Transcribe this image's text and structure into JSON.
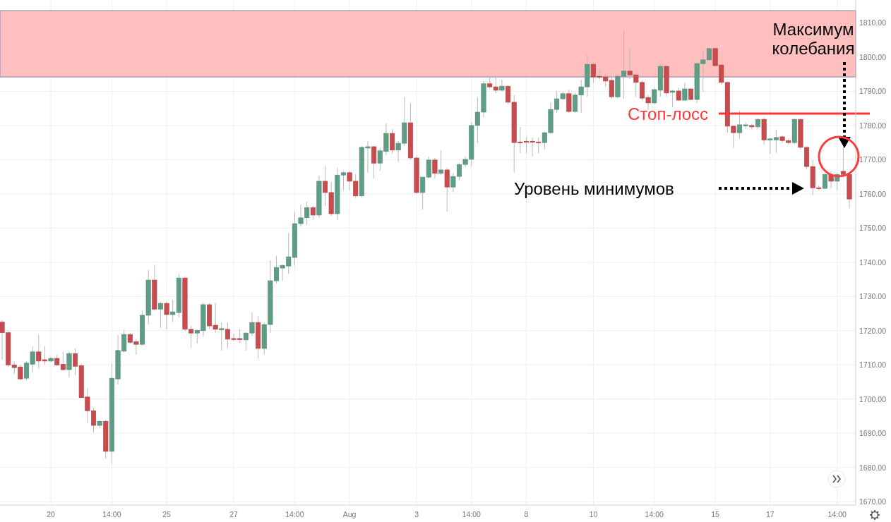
{
  "chart_data": {
    "type": "candlestick",
    "categories": [
      null,
      null,
      null,
      null,
      null,
      null,
      null,
      null,
      "20",
      null,
      null,
      null,
      null,
      null,
      null,
      null,
      null,
      null,
      "14:00",
      null,
      null,
      null,
      null,
      null,
      null,
      null,
      null,
      "25",
      null,
      null,
      null,
      null,
      null,
      null,
      null,
      null,
      null,
      null,
      "27",
      null,
      null,
      null,
      null,
      null,
      null,
      null,
      null,
      null,
      "14:00",
      null,
      null,
      null,
      null,
      null,
      null,
      null,
      null,
      "Aug",
      null,
      null,
      null,
      null,
      null,
      null,
      null,
      null,
      null,
      null,
      "3",
      null,
      null,
      null,
      null,
      null,
      null,
      null,
      null,
      "14:00",
      null,
      null,
      null,
      null,
      null,
      null,
      null,
      null,
      "8",
      null,
      null,
      null,
      null,
      null,
      null,
      null,
      null,
      null,
      null,
      "10",
      null,
      null,
      null,
      null,
      null,
      null,
      null,
      null,
      null,
      "14:00",
      null,
      null,
      null,
      null,
      null,
      null,
      null,
      null,
      null,
      "15",
      null,
      null,
      null,
      null,
      null,
      null,
      null,
      null,
      "17",
      null,
      null,
      null,
      null,
      null,
      null,
      null,
      null,
      null,
      null,
      "14:00",
      null,
      null
    ],
    "ohlc": [
      [
        1722.5,
        1723,
        1711.5,
        1719.4
      ],
      [
        1719.4,
        1719.7,
        1709.4,
        1710
      ],
      [
        1710,
        1711,
        1707.4,
        1709.2
      ],
      [
        1709.4,
        1710,
        1705.5,
        1705.9
      ],
      [
        1706.1,
        1711,
        1705.5,
        1710.5
      ],
      [
        1710.2,
        1715.4,
        1707.8,
        1713.8
      ],
      [
        1713.8,
        1718.7,
        1708.8,
        1711.1
      ],
      [
        1711.5,
        1715.4,
        1710,
        1711.1
      ],
      [
        1711.1,
        1712.3,
        1710.8,
        1711.9
      ],
      [
        1711.9,
        1712.9,
        1709.6,
        1710
      ],
      [
        1710.2,
        1713.8,
        1708.4,
        1708.6
      ],
      [
        1708.6,
        1714,
        1706.3,
        1713.3
      ],
      [
        1713.3,
        1714.8,
        1707,
        1709.6
      ],
      [
        1709.8,
        1710.2,
        1700.4,
        1700.4
      ],
      [
        1700.6,
        1703.2,
        1692.9,
        1696.6
      ],
      [
        1696.6,
        1697.4,
        1690.2,
        1692.3
      ],
      [
        1692.3,
        1693.9,
        1691.5,
        1693.5
      ],
      [
        1693.5,
        1693.9,
        1682.6,
        1684.7
      ],
      [
        1684.7,
        1710.4,
        1681.1,
        1706.1
      ],
      [
        1705.9,
        1718.7,
        1704.3,
        1714.2
      ],
      [
        1714,
        1720.3,
        1713.6,
        1718.9
      ],
      [
        1718.9,
        1719.4,
        1716.2,
        1716.6
      ],
      [
        1716.8,
        1717.6,
        1713,
        1716
      ],
      [
        1716,
        1725.9,
        1715.6,
        1724.5
      ],
      [
        1724.5,
        1737.7,
        1721.8,
        1734.8
      ],
      [
        1734.8,
        1739.3,
        1726,
        1726.3
      ],
      [
        1726.3,
        1728.4,
        1720.8,
        1728
      ],
      [
        1728,
        1728.4,
        1720.4,
        1724.7
      ],
      [
        1724.7,
        1729,
        1722.5,
        1725.5
      ],
      [
        1725.3,
        1736.6,
        1723.9,
        1735.4
      ],
      [
        1735.4,
        1735.6,
        1720,
        1720.4
      ],
      [
        1720.4,
        1721.4,
        1715,
        1719.3
      ],
      [
        1719.3,
        1720.4,
        1716.2,
        1720.1
      ],
      [
        1720,
        1728.2,
        1718.3,
        1727.6
      ],
      [
        1727.6,
        1728,
        1720.5,
        1721.4
      ],
      [
        1721.6,
        1728.2,
        1719.5,
        1720.4
      ],
      [
        1720.6,
        1722.4,
        1714.2,
        1720.6
      ],
      [
        1720.4,
        1722.4,
        1715,
        1717.5
      ],
      [
        1717.7,
        1719.1,
        1717,
        1717.5
      ],
      [
        1717.7,
        1720.4,
        1716.4,
        1717.5
      ],
      [
        1717.3,
        1719.6,
        1714.2,
        1719.3
      ],
      [
        1719.3,
        1725.3,
        1718.5,
        1722.4
      ],
      [
        1722.4,
        1724.3,
        1711.9,
        1714.8
      ],
      [
        1714.8,
        1722.5,
        1713.1,
        1721.8
      ],
      [
        1721.8,
        1740.6,
        1719.3,
        1734.6
      ],
      [
        1734.6,
        1741.8,
        1733.8,
        1738.5
      ],
      [
        1738.3,
        1739.4,
        1734.6,
        1739.1
      ],
      [
        1738.9,
        1748.6,
        1736.6,
        1741.6
      ],
      [
        1741.4,
        1754.8,
        1739,
        1751.3
      ],
      [
        1751.3,
        1756.9,
        1750.5,
        1753
      ],
      [
        1753,
        1757.7,
        1750.9,
        1756
      ],
      [
        1756,
        1756.5,
        1752.5,
        1753.8
      ],
      [
        1753.8,
        1765.3,
        1753,
        1763.7
      ],
      [
        1763.7,
        1768.2,
        1756.5,
        1760.4
      ],
      [
        1760.4,
        1763.5,
        1753.6,
        1754.2
      ],
      [
        1754.2,
        1767.6,
        1752.3,
        1765.5
      ],
      [
        1765.5,
        1766.5,
        1761,
        1766.2
      ],
      [
        1766.2,
        1766.6,
        1761,
        1763.7
      ],
      [
        1763.7,
        1765.8,
        1758.8,
        1759.4
      ],
      [
        1759.4,
        1774,
        1759,
        1773.6
      ],
      [
        1773.4,
        1775.4,
        1766.2,
        1773.8
      ],
      [
        1773.8,
        1774,
        1764.5,
        1769
      ],
      [
        1769,
        1773.5,
        1766.8,
        1772.6
      ],
      [
        1772.4,
        1780.6,
        1771.3,
        1777.7
      ],
      [
        1777.7,
        1779,
        1771.8,
        1772.8
      ],
      [
        1772.8,
        1775.5,
        1769.3,
        1774.8
      ],
      [
        1774.8,
        1788.4,
        1774,
        1780.8
      ],
      [
        1780.8,
        1786.4,
        1770,
        1770.5
      ],
      [
        1770.5,
        1771,
        1760,
        1760.4
      ],
      [
        1760.4,
        1765,
        1755.4,
        1764.9
      ],
      [
        1764.9,
        1770.9,
        1764.5,
        1769.9
      ],
      [
        1769.9,
        1770.5,
        1764.5,
        1766
      ],
      [
        1766,
        1772.8,
        1765.5,
        1767
      ],
      [
        1767,
        1767.5,
        1754.8,
        1762
      ],
      [
        1762,
        1766,
        1760.5,
        1765.1
      ],
      [
        1765.1,
        1769,
        1764,
        1768.6
      ],
      [
        1768.6,
        1771,
        1767.8,
        1770.1
      ],
      [
        1770.1,
        1781,
        1768,
        1780
      ],
      [
        1780,
        1788.2,
        1774.8,
        1783.9
      ],
      [
        1783.9,
        1793,
        1782.3,
        1792.2
      ],
      [
        1792.2,
        1794.6,
        1790.8,
        1791.3
      ],
      [
        1791.3,
        1794.6,
        1789.5,
        1790.3
      ],
      [
        1790.3,
        1793.4,
        1790,
        1791.5
      ],
      [
        1791.5,
        1791.7,
        1786.2,
        1786.8
      ],
      [
        1786.8,
        1788.9,
        1766.2,
        1775
      ],
      [
        1775.2,
        1779.6,
        1771.9,
        1775
      ],
      [
        1775.4,
        1776.5,
        1771.9,
        1775.2
      ],
      [
        1775.4,
        1776.5,
        1770.9,
        1775.2
      ],
      [
        1775.2,
        1776.5,
        1771.9,
        1775
      ],
      [
        1775,
        1778.1,
        1773,
        1777.9
      ],
      [
        1777.9,
        1786.8,
        1777.5,
        1784.7
      ],
      [
        1784.7,
        1790,
        1783.7,
        1787.8
      ],
      [
        1787.8,
        1789.9,
        1787.6,
        1789.3
      ],
      [
        1789.3,
        1790.5,
        1783.7,
        1784.1
      ],
      [
        1784.1,
        1789.6,
        1783.7,
        1788.9
      ],
      [
        1788.9,
        1793.4,
        1783.7,
        1791.3
      ],
      [
        1791.3,
        1800.6,
        1788.4,
        1797.9
      ],
      [
        1797.9,
        1798.5,
        1792.4,
        1794.2
      ],
      [
        1794.4,
        1796.5,
        1793.6,
        1794.2
      ],
      [
        1794.2,
        1795,
        1791.3,
        1793
      ],
      [
        1793.2,
        1794.6,
        1787.8,
        1788.4
      ],
      [
        1788.4,
        1795,
        1787.8,
        1794.4
      ],
      [
        1794.4,
        1808,
        1787.8,
        1795.9
      ],
      [
        1795.9,
        1802.3,
        1793.6,
        1794.8
      ],
      [
        1794.8,
        1795.6,
        1788.4,
        1792.6
      ],
      [
        1792.6,
        1793.2,
        1787.4,
        1788
      ],
      [
        1788.2,
        1789,
        1784.7,
        1786.6
      ],
      [
        1786.6,
        1791,
        1786.2,
        1790.5
      ],
      [
        1790.3,
        1798.1,
        1788.4,
        1797.3
      ],
      [
        1797.3,
        1797.6,
        1788.4,
        1789.5
      ],
      [
        1789.7,
        1790.4,
        1785.3,
        1790.1
      ],
      [
        1790.1,
        1791,
        1787.2,
        1787.4
      ],
      [
        1787.4,
        1792.6,
        1787.2,
        1790.7
      ],
      [
        1790.7,
        1790.9,
        1787.3,
        1787.6
      ],
      [
        1787.6,
        1798.4,
        1786.6,
        1798.1
      ],
      [
        1798.1,
        1801.9,
        1789.9,
        1799.2
      ],
      [
        1799.2,
        1802.7,
        1799,
        1802.5
      ],
      [
        1802.5,
        1802.7,
        1797.3,
        1797.5
      ],
      [
        1797.7,
        1798,
        1792,
        1792.6
      ],
      [
        1792.6,
        1793,
        1777.9,
        1779.8
      ],
      [
        1779.8,
        1780,
        1773.4,
        1777.9
      ],
      [
        1777.9,
        1784.3,
        1776.1,
        1780.2
      ],
      [
        1780,
        1781,
        1779,
        1780.2
      ],
      [
        1780,
        1780.5,
        1778.8,
        1779.6
      ],
      [
        1779.6,
        1782.1,
        1779,
        1781.8
      ],
      [
        1781.8,
        1782.3,
        1774.4,
        1775.8
      ],
      [
        1776,
        1776.3,
        1771.7,
        1776.1
      ],
      [
        1775.8,
        1778.8,
        1772,
        1776.5
      ],
      [
        1776.7,
        1777,
        1775,
        1775.6
      ],
      [
        1775.6,
        1776,
        1774.5,
        1775
      ],
      [
        1775,
        1782,
        1774.5,
        1781.8
      ],
      [
        1781.8,
        1782,
        1773,
        1773.6
      ],
      [
        1773.6,
        1774,
        1767.2,
        1768
      ],
      [
        1768,
        1769.9,
        1759.6,
        1761.8
      ],
      [
        1761.8,
        1762.5,
        1761,
        1761.6
      ],
      [
        1761.6,
        1766,
        1761.4,
        1765.7
      ],
      [
        1765.7,
        1766.6,
        1761.6,
        1763.7
      ],
      [
        1763.7,
        1766,
        1761,
        1765.7
      ],
      [
        1766.6,
        1773.8,
        1765.5,
        1765.7
      ],
      [
        1765.7,
        1766,
        1755.8,
        1758.5
      ]
    ],
    "ylim": [
      1669,
      1816.7
    ],
    "yticks": [
      {
        "value": 1670,
        "label": "1670.00"
      },
      {
        "value": 1680,
        "label": "1680.00"
      },
      {
        "value": 1690,
        "label": "1690.00"
      },
      {
        "value": 1700,
        "label": "1700.00"
      },
      {
        "value": 1710,
        "label": "1710.00"
      },
      {
        "value": 1720,
        "label": "1720.00"
      },
      {
        "value": 1730,
        "label": "1730.00"
      },
      {
        "value": 1740,
        "label": "1740.00"
      },
      {
        "value": 1750,
        "label": "1750.00"
      },
      {
        "value": 1760,
        "label": "1760.00"
      },
      {
        "value": 1770,
        "label": "1770.00"
      },
      {
        "value": 1780,
        "label": "1780.00"
      },
      {
        "value": 1790,
        "label": "1790.00"
      },
      {
        "value": 1800,
        "label": "1800.00"
      },
      {
        "value": 1810,
        "label": "1810.00"
      }
    ],
    "grid": true,
    "bands": [
      {
        "axis": "y",
        "from": 1794.2,
        "to": 1813.6,
        "color": "#ffbfbf"
      }
    ],
    "ref_lines": [
      {
        "axis": "y",
        "value": 1783.5,
        "label": "Стоп-лосс",
        "color": "#ff3535"
      }
    ],
    "annotations": [
      "Максимум колебания",
      "Уровень минимумов"
    ]
  }
}
